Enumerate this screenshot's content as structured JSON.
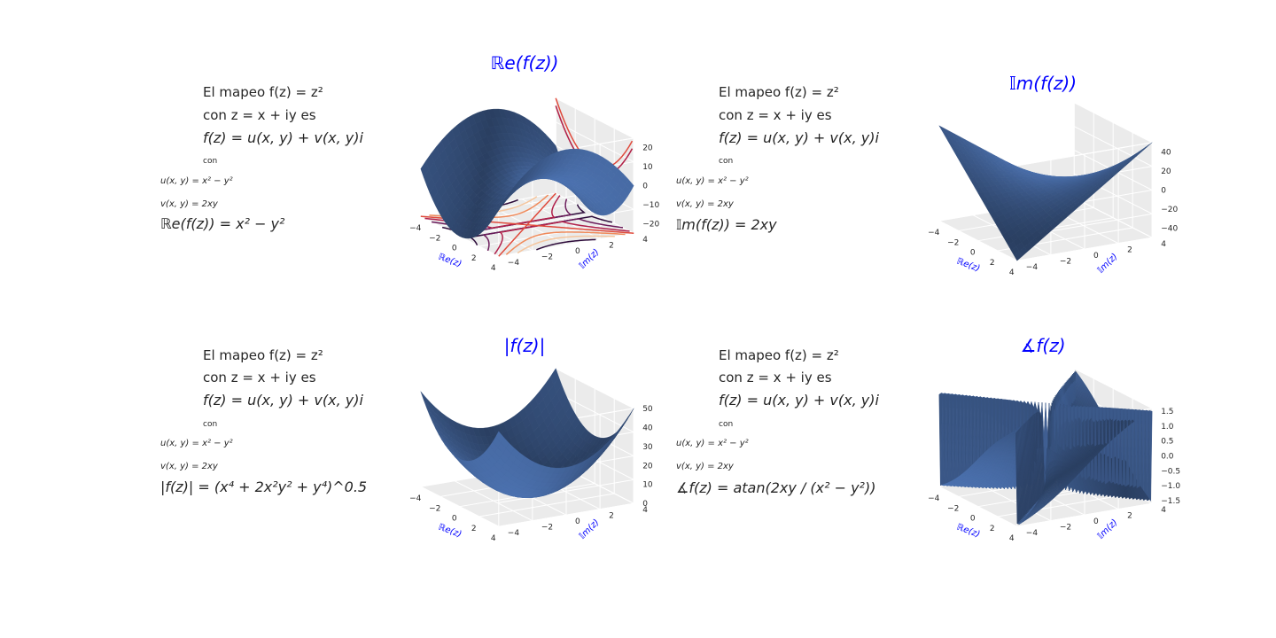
{
  "panels": [
    {
      "intro": "El mapeo f(z) = z²",
      "line2": "con z = x + iy es",
      "line3": "f(z) = u(x, y) + v(x, y)i",
      "con": "con",
      "u": "u(x, y) = x² − y²",
      "v": "v(x, y) = 2xy",
      "formula": "ℝe(f(z)) = x² − y²"
    },
    {
      "intro": "El mapeo f(z) = z²",
      "line2": "con z = x + iy es",
      "line3": "f(z) = u(x, y) + v(x, y)i",
      "con": "con",
      "u": "u(x, y) = x² − y²",
      "v": "v(x, y) = 2xy",
      "formula": "𝕀m(f(z)) = 2xy"
    },
    {
      "intro": "El mapeo f(z) = z²",
      "line2": "con z = x + iy es",
      "line3": "f(z) = u(x, y) + v(x, y)i",
      "con": "con",
      "u": "u(x, y) = x² − y²",
      "v": "v(x, y) = 2xy",
      "formula": "|f(z)| = (x⁴ + 2x²y² + y⁴)^0.5"
    },
    {
      "intro": "El mapeo f(z) = z²",
      "line2": "con z = x + iy es",
      "line3": "f(z) = u(x, y) + v(x, y)i",
      "con": "con",
      "u": "u(x, y) = x² − y²",
      "v": "v(x, y) = 2xy",
      "formula": "∡f(z) = atan(2xy / (x² − y²))"
    }
  ],
  "chart_data": [
    {
      "type": "surface3d",
      "title": "ℝe(f(z))",
      "xlabel": "ℝe(z)",
      "ylabel": "𝕀m(z)",
      "xticks": [
        "−4",
        "−2",
        "0",
        "2",
        "4"
      ],
      "yticks": [
        "−4",
        "−2",
        "0",
        "2",
        "4"
      ],
      "zticks": [
        "20",
        "10",
        "0",
        "−10",
        "−20"
      ],
      "zlim": [
        -25,
        25
      ],
      "function": "x^2 - y^2",
      "contours": true,
      "color": "#4c72b0"
    },
    {
      "type": "surface3d",
      "title": "𝕀m(f(z))",
      "xlabel": "ℝe(z)",
      "ylabel": "𝕀m(z)",
      "xticks": [
        "−4",
        "−2",
        "0",
        "2",
        "4"
      ],
      "yticks": [
        "−4",
        "−2",
        "0",
        "2",
        "4"
      ],
      "zticks": [
        "40",
        "20",
        "0",
        "−20",
        "−40"
      ],
      "zlim": [
        -50,
        50
      ],
      "function": "2xy",
      "color": "#4c72b0"
    },
    {
      "type": "surface3d",
      "title": "|f(z)|",
      "xlabel": "ℝe(z)",
      "ylabel": "𝕀m(z)",
      "xticks": [
        "−4",
        "−2",
        "0",
        "2",
        "4"
      ],
      "yticks": [
        "−4",
        "−2",
        "0",
        "2",
        "4"
      ],
      "zticks": [
        "50",
        "40",
        "30",
        "20",
        "10",
        "0"
      ],
      "zlim": [
        0,
        50
      ],
      "function": "x^2 + y^2",
      "color": "#4c72b0"
    },
    {
      "type": "surface3d",
      "title": "∡f(z)",
      "xlabel": "ℝe(z)",
      "ylabel": "𝕀m(z)",
      "xticks": [
        "−4",
        "−2",
        "0",
        "2",
        "4"
      ],
      "yticks": [
        "−4",
        "−2",
        "0",
        "2",
        "4"
      ],
      "zticks": [
        "1.5",
        "1.0",
        "0.5",
        "0.0",
        "−0.5",
        "−1.0",
        "−1.5"
      ],
      "zlim": [
        -1.6,
        1.6
      ],
      "function": "atan(2xy/(x^2-y^2))",
      "color": "#4c72b0"
    }
  ],
  "colors": {
    "title": "#0000ff",
    "surface": "#4c72b0",
    "pane": "#ebebeb"
  }
}
